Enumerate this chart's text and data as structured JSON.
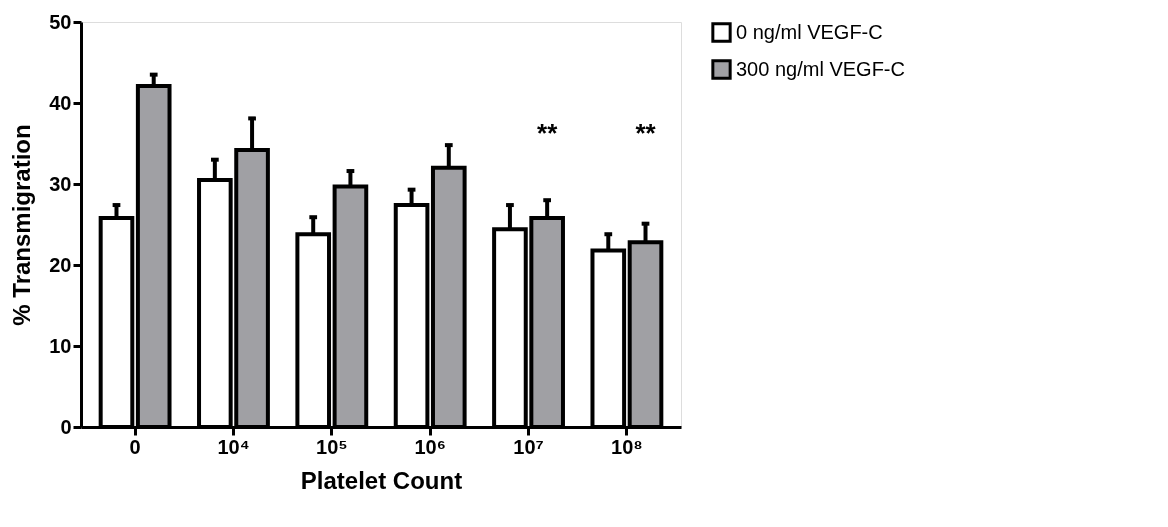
{
  "chart_data": {
    "type": "bar",
    "xlabel": "Platelet Count",
    "ylabel": "% Transmigration",
    "categories": [
      "0",
      "10⁴",
      "10⁵",
      "10⁶",
      "10⁷",
      "10⁸"
    ],
    "series": [
      {
        "name": "0 ng/ml VEGF-C",
        "color": "#ffffff",
        "values": [
          25.8,
          30.5,
          23.8,
          27.4,
          24.4,
          21.8
        ],
        "errors": [
          [
            25.8,
            27.4
          ],
          [
            30.5,
            33.0
          ],
          [
            23.8,
            25.9
          ],
          [
            27.4,
            29.3
          ],
          [
            24.4,
            27.4
          ],
          [
            21.8,
            23.8
          ]
        ]
      },
      {
        "name": "300 ng/ml VEGF-C",
        "color": "#a0a0a4",
        "values": [
          42.1,
          34.2,
          29.7,
          32.0,
          25.8,
          22.8
        ],
        "errors": [
          [
            42.1,
            43.5
          ],
          [
            34.2,
            38.1
          ],
          [
            29.7,
            31.6
          ],
          [
            32.0,
            34.8
          ],
          [
            25.8,
            28.0
          ],
          [
            22.8,
            25.1
          ]
        ]
      }
    ],
    "ylim": [
      0,
      50
    ],
    "yticks": [
      0,
      10,
      20,
      30,
      40,
      50
    ],
    "grid": false,
    "legend": "top right",
    "annotations": [
      "**",
      "**"
    ]
  }
}
